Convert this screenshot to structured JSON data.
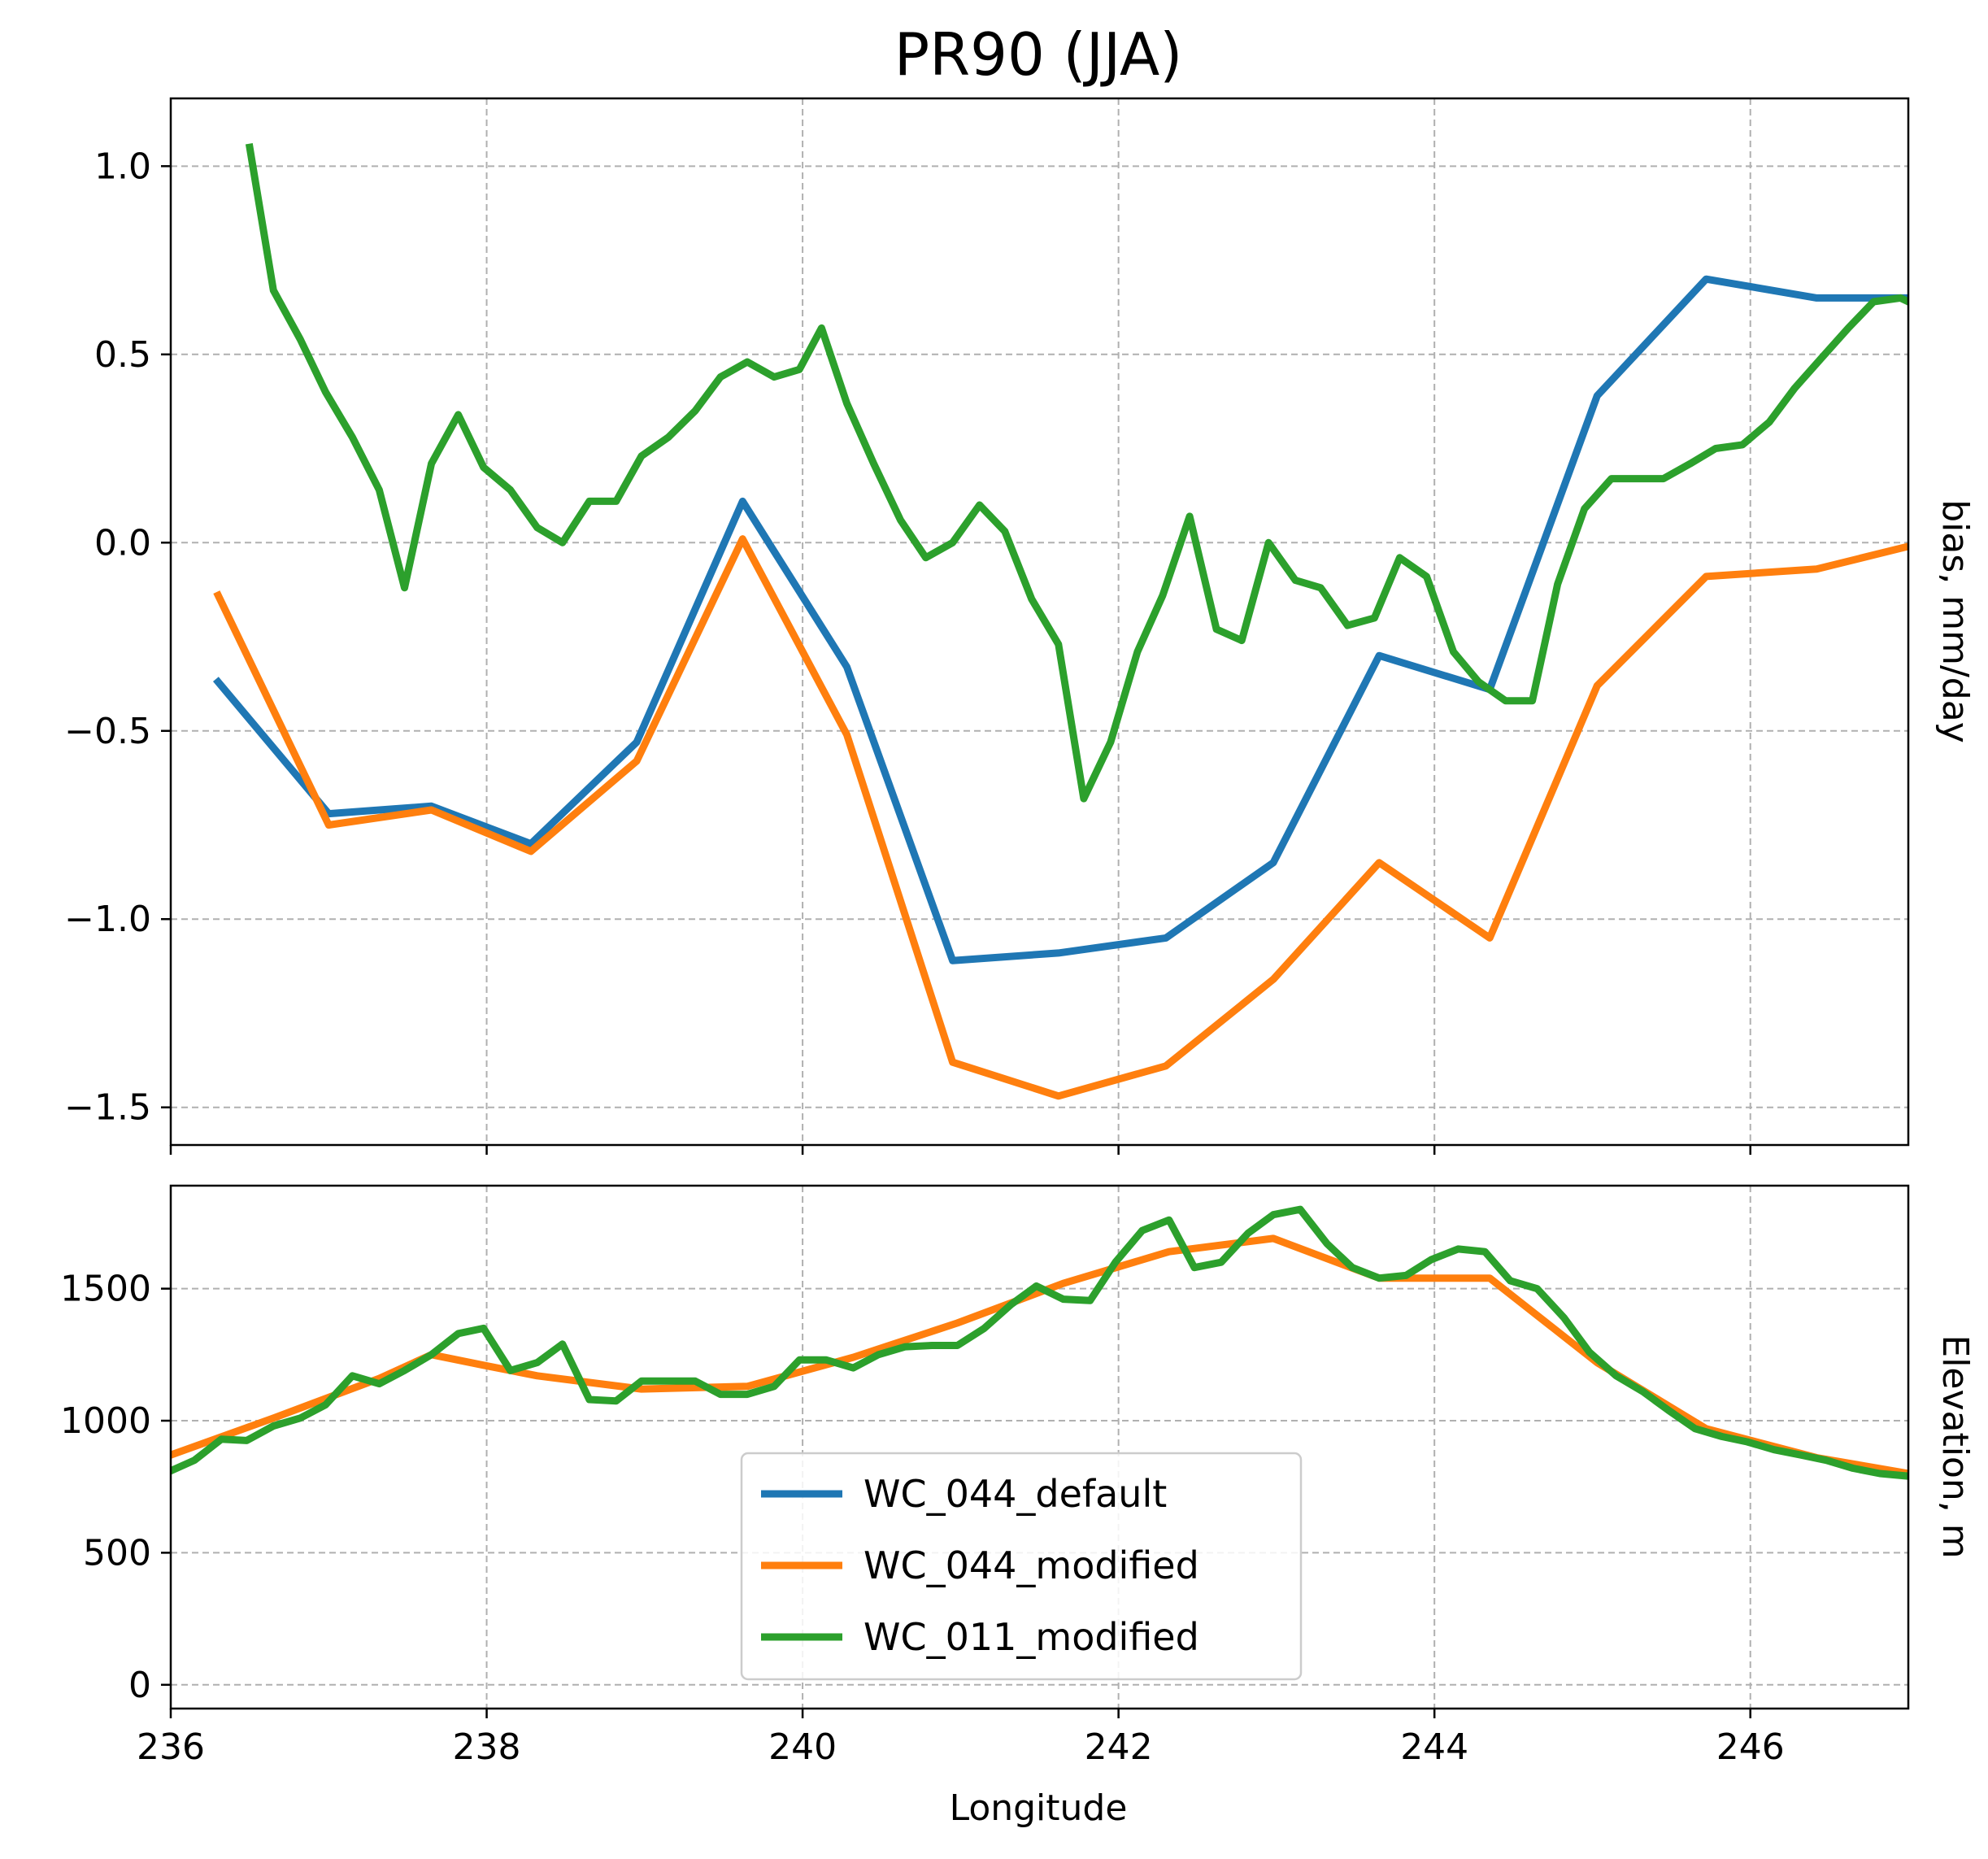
{
  "title": "PR90 (JJA)",
  "xlabel": "Longitude",
  "colors": {
    "WC_044_default": "#1f77b4",
    "WC_044_modified": "#ff7f0e",
    "WC_011_modified": "#2ca02c",
    "grid": "#b0b0b0",
    "axes": "#000000"
  },
  "legend": {
    "placement": "lower center",
    "entries": [
      "WC_044_default",
      "WC_044_modified",
      "WC_011_modified"
    ]
  },
  "chart_data": [
    {
      "type": "line",
      "ylabel": "bias, mm/day",
      "xlim": [
        236,
        247
      ],
      "ylim": [
        -1.6,
        1.18
      ],
      "xticks": [
        236,
        238,
        240,
        242,
        244,
        246
      ],
      "xtick_labels": [
        "",
        "",
        "",
        "",
        "",
        ""
      ],
      "yticks": [
        1.0,
        0.5,
        0.0,
        -0.5,
        -1.0,
        -1.5
      ],
      "ytick_labels": [
        "1.0",
        "0.5",
        "0.0",
        "−0.5",
        "−1.0",
        "−1.5"
      ],
      "grid": true,
      "series": [
        {
          "name": "WC_044_default",
          "x": [
            236.3,
            237.0,
            237.65,
            238.28,
            238.95,
            239.62,
            240.28,
            240.95,
            241.62,
            242.3,
            242.98,
            243.65,
            244.35,
            245.03,
            245.72,
            246.42,
            247.0
          ],
          "y": [
            -0.37,
            -0.72,
            -0.7,
            -0.8,
            -0.53,
            0.11,
            -0.33,
            -1.11,
            -1.09,
            -1.05,
            -0.85,
            -0.3,
            -0.39,
            0.39,
            0.7,
            0.65,
            0.65
          ]
        },
        {
          "name": "WC_044_modified",
          "x": [
            236.3,
            237.0,
            237.65,
            238.28,
            238.95,
            239.62,
            240.28,
            240.95,
            241.62,
            242.3,
            242.98,
            243.65,
            244.35,
            245.03,
            245.72,
            246.42,
            247.0
          ],
          "y": [
            -0.14,
            -0.75,
            -0.71,
            -0.82,
            -0.58,
            0.01,
            -0.51,
            -1.38,
            -1.47,
            -1.39,
            -1.16,
            -0.85,
            -1.05,
            -0.38,
            -0.09,
            -0.07,
            -0.01
          ]
        },
        {
          "name": "WC_011_modified",
          "x": [
            236.5,
            236.65,
            236.82,
            236.98,
            237.15,
            237.32,
            237.48,
            237.65,
            237.82,
            237.98,
            238.15,
            238.32,
            238.48,
            238.65,
            238.82,
            238.98,
            239.15,
            239.32,
            239.48,
            239.65,
            239.82,
            239.98,
            240.12,
            240.28,
            240.45,
            240.62,
            240.78,
            240.95,
            241.12,
            241.28,
            241.45,
            241.62,
            241.78,
            241.95,
            242.12,
            242.28,
            242.45,
            242.62,
            242.78,
            242.95,
            243.12,
            243.28,
            243.45,
            243.62,
            243.78,
            243.95,
            244.12,
            244.28,
            244.45,
            244.62,
            244.78,
            244.95,
            245.12,
            245.28,
            245.45,
            245.62,
            245.78,
            245.95,
            246.12,
            246.28,
            246.45,
            246.62,
            246.78,
            246.95,
            247.0
          ],
          "y": [
            1.05,
            0.67,
            0.54,
            0.4,
            0.28,
            0.14,
            -0.12,
            0.21,
            0.34,
            0.2,
            0.14,
            0.04,
            0.0,
            0.11,
            0.11,
            0.23,
            0.28,
            0.35,
            0.44,
            0.48,
            0.44,
            0.46,
            0.57,
            0.37,
            0.21,
            0.06,
            -0.04,
            0.0,
            0.1,
            0.03,
            -0.15,
            -0.27,
            -0.68,
            -0.53,
            -0.29,
            -0.14,
            0.07,
            -0.23,
            -0.26,
            0.0,
            -0.1,
            -0.12,
            -0.22,
            -0.2,
            -0.04,
            -0.09,
            -0.29,
            -0.37,
            -0.42,
            -0.42,
            -0.11,
            0.09,
            0.17,
            0.17,
            0.17,
            0.21,
            0.25,
            0.26,
            0.32,
            0.41,
            0.49,
            0.57,
            0.64,
            0.65,
            0.64
          ]
        }
      ]
    },
    {
      "type": "line",
      "ylabel": "Elevation, m",
      "xlabel": "Longitude",
      "xlim": [
        236,
        247
      ],
      "ylim": [
        -90,
        1890
      ],
      "xticks": [
        236,
        238,
        240,
        242,
        244,
        246
      ],
      "xtick_labels": [
        "236",
        "238",
        "240",
        "242",
        "244",
        "246"
      ],
      "yticks": [
        1500,
        1000,
        500,
        0
      ],
      "ytick_labels": [
        "1500",
        "1000",
        "500",
        "0"
      ],
      "grid": true,
      "series": [
        {
          "name": "WC_044_modified",
          "x": [
            236.0,
            236.65,
            237.32,
            237.65,
            237.98,
            238.32,
            238.98,
            239.65,
            240.32,
            240.98,
            241.65,
            242.32,
            242.98,
            243.65,
            244.35,
            245.03,
            245.72,
            246.42,
            247.0
          ],
          "y": [
            870,
            1010,
            1160,
            1250,
            1210,
            1170,
            1120,
            1130,
            1240,
            1370,
            1520,
            1640,
            1690,
            1540,
            1540,
            1220,
            970,
            860,
            800
          ]
        },
        {
          "name": "WC_011_modified",
          "x": [
            236.0,
            236.15,
            236.32,
            236.48,
            236.65,
            236.82,
            236.98,
            237.15,
            237.32,
            237.48,
            237.65,
            237.82,
            237.98,
            238.15,
            238.32,
            238.48,
            238.65,
            238.82,
            238.98,
            239.15,
            239.32,
            239.48,
            239.65,
            239.82,
            239.98,
            240.15,
            240.32,
            240.48,
            240.65,
            240.82,
            240.98,
            241.15,
            241.32,
            241.48,
            241.65,
            241.82,
            241.98,
            242.15,
            242.32,
            242.48,
            242.65,
            242.82,
            242.98,
            243.15,
            243.32,
            243.48,
            243.65,
            243.82,
            243.98,
            244.15,
            244.32,
            244.48,
            244.65,
            244.82,
            244.98,
            245.15,
            245.32,
            245.48,
            245.65,
            245.82,
            245.98,
            246.15,
            246.32,
            246.48,
            246.65,
            246.82,
            247.0
          ],
          "y": [
            810,
            850,
            930,
            925,
            980,
            1010,
            1060,
            1170,
            1140,
            1190,
            1250,
            1330,
            1350,
            1190,
            1220,
            1290,
            1080,
            1075,
            1150,
            1150,
            1150,
            1100,
            1100,
            1130,
            1230,
            1230,
            1200,
            1250,
            1280,
            1285,
            1285,
            1350,
            1440,
            1510,
            1460,
            1455,
            1600,
            1720,
            1760,
            1580,
            1600,
            1710,
            1780,
            1800,
            1670,
            1580,
            1540,
            1550,
            1610,
            1650,
            1640,
            1530,
            1500,
            1390,
            1260,
            1170,
            1110,
            1040,
            970,
            940,
            920,
            890,
            870,
            850,
            820,
            800,
            790
          ]
        }
      ]
    }
  ]
}
